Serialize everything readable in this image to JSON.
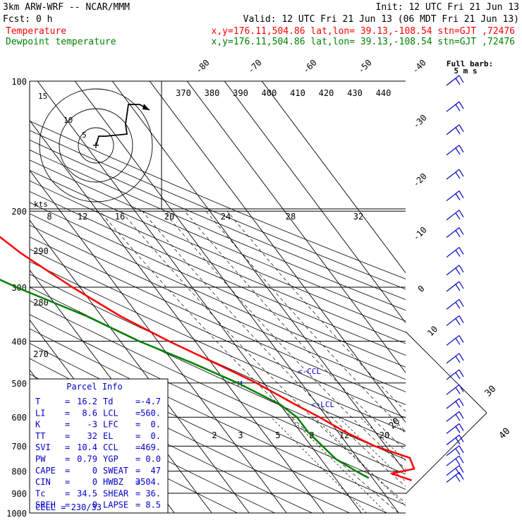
{
  "header": {
    "model": "3km ARW-WRF -- NCAR/MMM",
    "init": "Init: 12 UTC Fri 21 Jun 13",
    "fcst": "Fcst:    0 h",
    "valid": "Valid: 12 UTC Fri 21 Jun 13 (06 MDT Fri 21 Jun 13)"
  },
  "legend": [
    {
      "label": "Temperature",
      "info": "x,y=176.11,504.86   lat,lon= 39.13,-108.54  stn=GJT ,72476",
      "color": "#ff0000"
    },
    {
      "label": "Dewpoint temperature",
      "info": "x,y=176.11,504.86   lat,lon= 39.13,-108.54  stn=GJT ,72476",
      "color": "#008000"
    }
  ],
  "barb_title": {
    "line1": "Full barb:",
    "line2": "5 m s"
  },
  "chart_data": {
    "type": "skew-t",
    "pressure_levels": [
      100,
      200,
      300,
      400,
      500,
      600,
      700,
      800,
      900,
      1000
    ],
    "pressure_units": "hPa",
    "skewed_isotherm_labels": [
      "-80",
      "-70",
      "-60",
      "-50",
      "-40",
      "-30",
      "-20",
      "-10",
      "0",
      "10",
      "20",
      "30",
      "40"
    ],
    "dry_adiabat_labels": [
      "370",
      "380",
      "390",
      "400",
      "410",
      "420",
      "430",
      "440"
    ],
    "hodograph_speed_labels": [
      "8",
      "12",
      "16",
      "20",
      "24",
      "28",
      "32"
    ],
    "hodograph_speed_units": "kts",
    "hodograph_ring_labels": [
      "5",
      "10",
      "15"
    ],
    "mixing_ratio_labels": [
      "2",
      "3",
      "5",
      "8",
      "12",
      "20"
    ],
    "thetae_labels": [
      "290",
      "280",
      "270"
    ],
    "level_markers": [
      {
        "label": "<-CCL",
        "pressure": 469
      },
      {
        "label": "<-LCL",
        "pressure": 560
      },
      {
        "label": "M",
        "pressure": 500
      }
    ],
    "series": [
      {
        "name": "Temperature",
        "color": "#ff0000",
        "points": [
          [
            100,
            -59
          ],
          [
            150,
            -56
          ],
          [
            200,
            -55
          ],
          [
            250,
            -49
          ],
          [
            300,
            -42
          ],
          [
            350,
            -35
          ],
          [
            400,
            -27
          ],
          [
            450,
            -19
          ],
          [
            500,
            -12
          ],
          [
            560,
            -6
          ],
          [
            600,
            -2
          ],
          [
            650,
            2
          ],
          [
            700,
            7
          ],
          [
            745,
            14
          ],
          [
            790,
            13
          ],
          [
            810,
            6
          ],
          [
            840,
            10
          ]
        ]
      },
      {
        "name": "Dewpoint temperature",
        "color": "#008000",
        "points": [
          [
            100,
            -84
          ],
          [
            150,
            -85
          ],
          [
            200,
            -80
          ],
          [
            250,
            -70
          ],
          [
            300,
            -57
          ],
          [
            350,
            -44
          ],
          [
            400,
            -35
          ],
          [
            450,
            -25
          ],
          [
            500,
            -17
          ],
          [
            560,
            -10
          ],
          [
            600,
            -8
          ],
          [
            650,
            -8
          ],
          [
            700,
            -7
          ],
          [
            750,
            -6
          ],
          [
            800,
            -3
          ],
          [
            830,
            -1
          ]
        ]
      }
    ],
    "wind_barbs": [
      100,
      115,
      130,
      145,
      165,
      185,
      205,
      225,
      250,
      275,
      300,
      330,
      360,
      400,
      440,
      480,
      520,
      560,
      600,
      640,
      680,
      720,
      760,
      800,
      830
    ]
  },
  "parcel_info": {
    "title": "Parcel  Info",
    "rows": [
      {
        "left_key": "T",
        "left_val": "16.2",
        "right_key": "Td",
        "right_val": "-4.7"
      },
      {
        "left_key": "LI",
        "left_val": "8.6",
        "right_key": "LCL",
        "right_val": "560."
      },
      {
        "left_key": "K",
        "left_val": "-3",
        "right_key": "LFC",
        "right_val": "0."
      },
      {
        "left_key": "TT",
        "left_val": "32",
        "right_key": "EL",
        "right_val": "0."
      },
      {
        "left_key": "SVI",
        "left_val": "10.4",
        "right_key": "CCL",
        "right_val": "469."
      },
      {
        "left_key": "PW",
        "left_val": "0.79",
        "right_key": "YGP",
        "right_val": "0.0"
      },
      {
        "left_key": "CAPE",
        "left_val": "0",
        "right_key": "SWEAT",
        "right_val": "47"
      },
      {
        "left_key": "CIN",
        "left_val": "0",
        "right_key": "HWBZ",
        "right_val": "3504."
      },
      {
        "left_key": "Tc",
        "left_val": "34.5",
        "right_key": "SHEAR",
        "right_val": "36."
      },
      {
        "left_key": "SREH",
        "left_val": "0",
        "right_key": "LAPSE",
        "right_val": "8.5"
      }
    ],
    "cell": "CELL = 230/33"
  }
}
